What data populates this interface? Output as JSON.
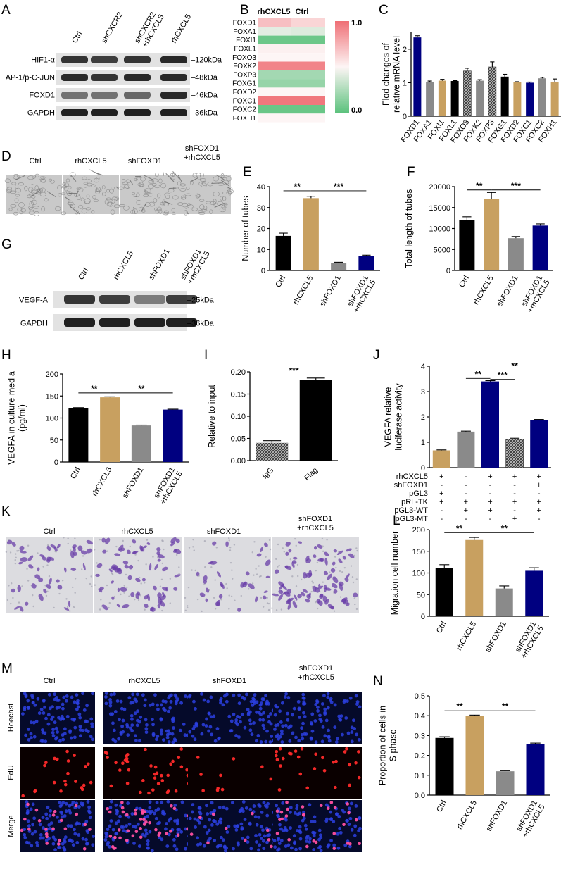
{
  "colors": {
    "ctrl": "#000000",
    "rhcxcl5": "#c8a060",
    "shfoxd1": "#8a8a8a",
    "combo": "#000080",
    "blot_bg": "#dcdcdc",
    "band": "#1e1e1e",
    "heat_high": "#ef6f75",
    "heat_mid": "#fdf5f5",
    "heat_low": "#5cc27d"
  },
  "panelA": {
    "letter": "A",
    "lanes": [
      "Ctrl",
      "shCXCR2",
      "shCXCR2\n+rhCXCL5",
      "rhCXCL5"
    ],
    "rows": [
      {
        "protein": "HIF1-α",
        "kda": "120kDa"
      },
      {
        "protein": "AP-1/p-C-JUN",
        "kda": "48kDa"
      },
      {
        "protein": "FOXD1",
        "kda": "46kDa"
      },
      {
        "protein": "GAPDH",
        "kda": "36kDa"
      }
    ]
  },
  "panelB": {
    "letter": "B",
    "columns": [
      "rhCXCL5",
      "Ctrl"
    ],
    "scale_max": "1.0",
    "scale_min": "0.0",
    "genes": [
      "FOXD1",
      "FOXA1",
      "FOXI1",
      "FOXL1",
      "FOXO3",
      "FOXK2",
      "FOXP3",
      "FOXG1",
      "FOXD2",
      "FOXC1",
      "FOXC2",
      "FOXH1"
    ],
    "values": [
      [
        0.7,
        0.62
      ],
      [
        0.42,
        0.4
      ],
      [
        0.05,
        0.05
      ],
      [
        0.52,
        0.52
      ],
      [
        0.5,
        0.5
      ],
      [
        0.92,
        0.92
      ],
      [
        0.22,
        0.22
      ],
      [
        0.18,
        0.18
      ],
      [
        0.5,
        0.5
      ],
      [
        0.97,
        0.97
      ],
      [
        0.04,
        0.04
      ],
      [
        0.5,
        0.5
      ]
    ]
  },
  "panelC": {
    "letter": "C",
    "chart_data": {
      "type": "bar",
      "ylabel": "Flod changes of\nrelative mRNA level",
      "categories": [
        "FOXD1",
        "FOXA1",
        "FOXI1",
        "FOXL1",
        "FOXO3",
        "FOXK2",
        "FOXP3",
        "FOXG1",
        "FOXD2",
        "FOXC1",
        "FOXC2",
        "FOXH1"
      ],
      "values": [
        2.35,
        1.03,
        1.06,
        1.05,
        1.35,
        1.06,
        1.47,
        1.18,
        1.01,
        1.0,
        1.13,
        1.03
      ],
      "errors": [
        0.05,
        0.02,
        0.04,
        0.01,
        0.08,
        0.03,
        0.15,
        0.07,
        0.02,
        0.02,
        0.03,
        0.08
      ],
      "colors": [
        "#000080",
        "#8a8a8a",
        "#c8a060",
        "#000000",
        "hatch",
        "#8a8a8a",
        "hatch",
        "#000000",
        "#c8a060",
        "#000080",
        "#8a8a8a",
        "#c8a060"
      ],
      "ylim": [
        0,
        2.5
      ],
      "yticks": [
        0,
        1,
        2
      ]
    }
  },
  "panelD": {
    "letter": "D",
    "labels": [
      "Ctrl",
      "rhCXCL5",
      "shFOXD1",
      "shFOXD1\n+rhCXCL5"
    ]
  },
  "panelE": {
    "letter": "E",
    "chart_data": {
      "type": "bar",
      "ylabel": "Number of tubes",
      "categories": [
        "Ctrl",
        "rhCXCL5",
        "shFOXD1",
        "shFOXD1\n+rhCXCL5"
      ],
      "values": [
        16.5,
        34.5,
        3.5,
        7.0
      ],
      "errors": [
        1.3,
        0.9,
        0.4,
        0.3
      ],
      "ylim": [
        0,
        40
      ],
      "yticks": [
        0,
        10,
        20,
        30,
        40
      ],
      "sig": [
        {
          "from": 0,
          "to": 1,
          "label": "**",
          "y": 38
        },
        {
          "from": 1,
          "to": 3,
          "label": "***",
          "y": 38
        }
      ]
    }
  },
  "panelF": {
    "letter": "F",
    "chart_data": {
      "type": "bar",
      "ylabel": "Total length of tubes",
      "categories": [
        "Ctrl",
        "rhCXCL5",
        "shFOXD1",
        "shFOXD1\n+rhCXCL5"
      ],
      "values": [
        12100,
        17100,
        7700,
        10700
      ],
      "errors": [
        700,
        1500,
        400,
        400
      ],
      "ylim": [
        0,
        20000
      ],
      "yticks": [
        0,
        5000,
        10000,
        15000,
        20000
      ],
      "sig": [
        {
          "from": 0,
          "to": 1,
          "label": "**",
          "y": 19200
        },
        {
          "from": 1,
          "to": 3,
          "label": "***",
          "y": 19200
        }
      ]
    }
  },
  "panelG": {
    "letter": "G",
    "lanes": [
      "Ctrl",
      "rhCXCL5",
      "shFOXD1",
      "shFOXD1\n+rhCXCL5"
    ],
    "rows": [
      {
        "protein": "VEGF-A",
        "kda": "25kDa"
      },
      {
        "protein": "GAPDH",
        "kda": "36kDa"
      }
    ]
  },
  "panelH": {
    "letter": "H",
    "chart_data": {
      "type": "bar",
      "ylabel": "VEGFA in culture media\n(pg/ml)",
      "categories": [
        "Ctrl",
        "rhCXCL5",
        "shFOXD1",
        "shFOXD1\n+rhCXCL5"
      ],
      "values": [
        122,
        147,
        83,
        119
      ],
      "errors": [
        1.5,
        1.2,
        1.0,
        1.0
      ],
      "ylim": [
        0,
        200
      ],
      "yticks": [
        0,
        50,
        100,
        150,
        200
      ],
      "sig": [
        {
          "from": 0,
          "to": 1,
          "label": "**",
          "y": 157
        },
        {
          "from": 1,
          "to": 3,
          "label": "**",
          "y": 157
        }
      ]
    }
  },
  "panelI": {
    "letter": "I",
    "chart_data": {
      "type": "bar",
      "ylabel": "Relative to input",
      "categories": [
        "IgG",
        "Flag"
      ],
      "values": [
        0.04,
        0.181
      ],
      "errors": [
        0.005,
        0.005
      ],
      "ylim": [
        0,
        0.2
      ],
      "yticks": [
        "0.00",
        "0.05",
        "0.10",
        "0.15",
        "0.20"
      ],
      "sig": [
        {
          "from": 0,
          "to": 1,
          "label": "***",
          "y": 0.193
        }
      ]
    }
  },
  "panelJ": {
    "letter": "J",
    "chart_data": {
      "type": "bar",
      "ylabel": "VEGFA relative\nluciferase activity",
      "values": [
        0.68,
        1.42,
        3.4,
        1.13,
        1.87
      ],
      "errors": [
        0.02,
        0.02,
        0.03,
        0.03,
        0.03
      ],
      "ylim": [
        0,
        4
      ],
      "yticks": [
        0,
        1,
        2,
        3,
        4
      ],
      "sig": [
        {
          "from": 2,
          "to": 3,
          "label": "***",
          "y": 3.48
        },
        {
          "from": 1,
          "to": 2,
          "label": "**",
          "y": 3.52
        },
        {
          "from": 2,
          "to": 4,
          "label": "**",
          "y": 3.85
        }
      ]
    },
    "table": [
      {
        "label": "rhCXCL5",
        "signs": [
          "+",
          "-",
          "+",
          "+",
          "+"
        ]
      },
      {
        "label": "shFOXD1",
        "signs": [
          "-",
          "-",
          "-",
          "-",
          "+"
        ]
      },
      {
        "label": "pGL3",
        "signs": [
          "+",
          "-",
          "-",
          "-",
          "-"
        ]
      },
      {
        "label": "pRL-TK",
        "signs": [
          "+",
          "+",
          "+",
          "+",
          "+"
        ]
      },
      {
        "label": "pGL3-WT",
        "signs": [
          "-",
          "+",
          "+",
          "-",
          "+"
        ]
      },
      {
        "label": "pGL3-MT",
        "signs": [
          "-",
          "-",
          "-",
          "+",
          "-"
        ]
      }
    ]
  },
  "panelK": {
    "letter": "K",
    "labels": [
      "Ctrl",
      "rhCXCL5",
      "shFOXD1",
      "shFOXD1\n+rhCXCL5"
    ]
  },
  "panelL": {
    "letter": "L",
    "chart_data": {
      "type": "bar",
      "ylabel": "Migration cell number",
      "categories": [
        "Ctrl",
        "rhCXCL5",
        "shFOXD1",
        "shFOXD1\n+rhCXCL5"
      ],
      "values": [
        112,
        176,
        64,
        105
      ],
      "errors": [
        7,
        6,
        6,
        7
      ],
      "ylim": [
        0,
        200
      ],
      "yticks": [
        0,
        50,
        100,
        150,
        200
      ],
      "sig": [
        {
          "from": 0,
          "to": 1,
          "label": "**",
          "y": 193
        },
        {
          "from": 1,
          "to": 3,
          "label": "**",
          "y": 193
        }
      ]
    }
  },
  "panelM": {
    "letter": "M",
    "labels": [
      "Ctrl",
      "rhCXCL5",
      "shFOXD1",
      "shFOXD1\n+rhCXCL5"
    ],
    "rows": [
      "Hoechst",
      "EdU",
      "Merge"
    ]
  },
  "panelN": {
    "letter": "N",
    "chart_data": {
      "type": "bar",
      "ylabel": "Proportion of cells in\nS phase",
      "categories": [
        "Ctrl",
        "rhCXCL5",
        "shFOXD1",
        "shFOXD1\n+rhCXCL5"
      ],
      "values": [
        0.288,
        0.398,
        0.12,
        0.258
      ],
      "errors": [
        0.006,
        0.005,
        0.003,
        0.004
      ],
      "ylim": [
        0,
        0.5
      ],
      "yticks": [
        "0.0",
        "0.1",
        "0.2",
        "0.3",
        "0.4",
        "0.5"
      ],
      "sig": [
        {
          "from": 0,
          "to": 1,
          "label": "**",
          "y": 0.425
        },
        {
          "from": 1,
          "to": 3,
          "label": "**",
          "y": 0.425
        }
      ]
    }
  }
}
